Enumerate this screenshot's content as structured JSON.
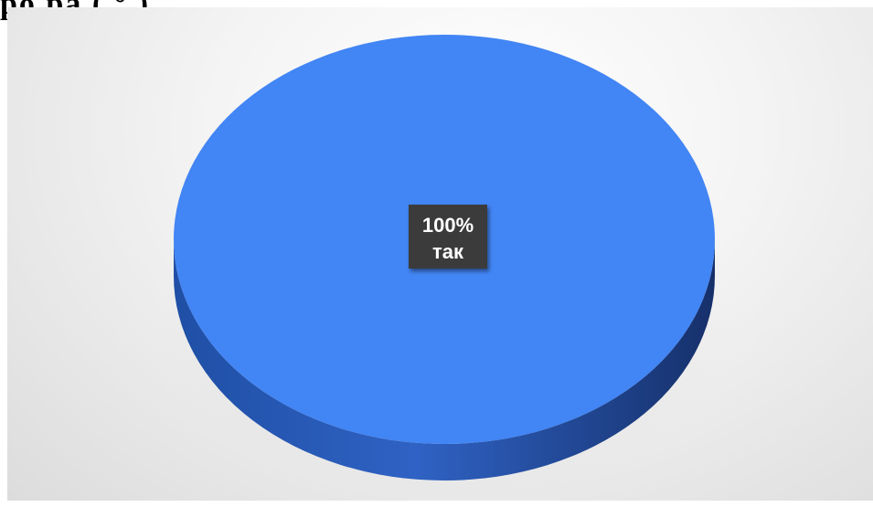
{
  "chart_data": {
    "type": "pie",
    "title": "",
    "categories": [
      "так"
    ],
    "values": [
      100
    ],
    "data_labels": [
      {
        "percent": "100%",
        "category": "так"
      }
    ],
    "legend": "none",
    "three_d": true
  },
  "colors": {
    "slice_top": "#4285f4",
    "slice_side": "#2f62c4",
    "slice_side_dark": "#173a7d",
    "label_bg": "#3a3a3a",
    "label_text": "#ffffff"
  },
  "header_fragment": "ро ра  ( ° )."
}
